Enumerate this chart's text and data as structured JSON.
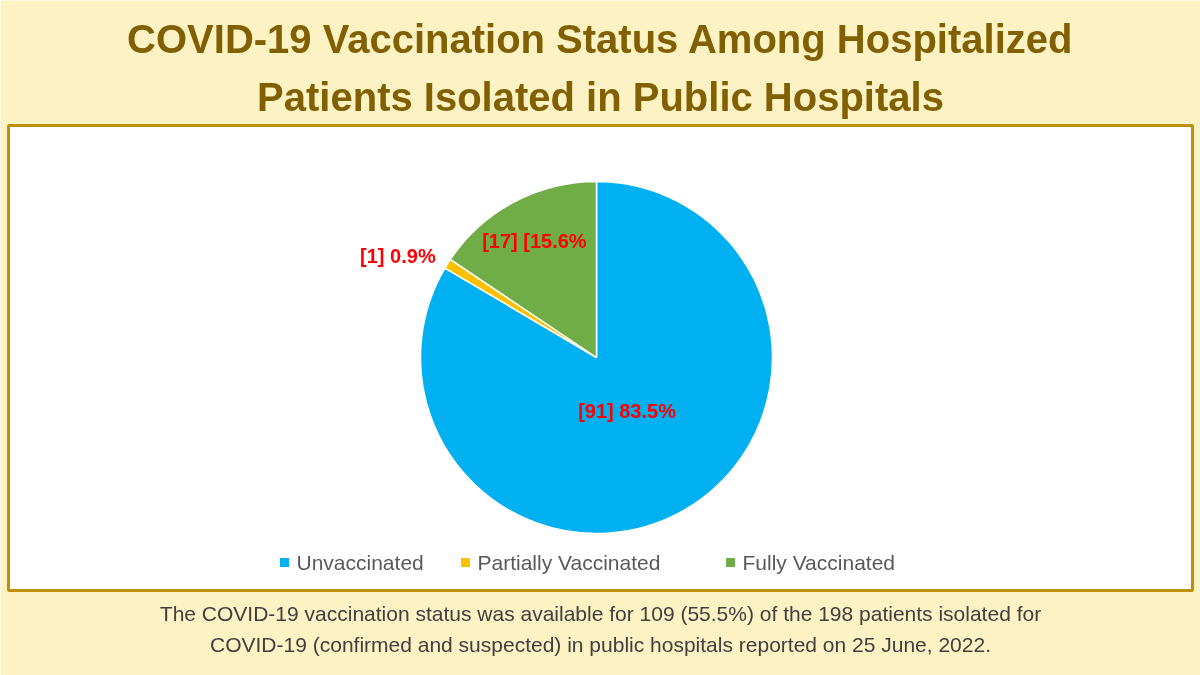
{
  "chart_data": {
    "type": "pie",
    "title": "COVID-19 Vaccination Status Among Hospitalized Patients Isolated in Public Hospitals",
    "categories": [
      "Unvaccinated",
      "Partially Vaccinated",
      "Fully Vaccinated"
    ],
    "values": [
      91,
      1,
      17
    ],
    "colors": [
      "#00b0f0",
      "#ffc000",
      "#70ad47"
    ],
    "value_labels": [
      "[91] 83.5%",
      "[1] 0.9%",
      "[17] [15.6%"
    ],
    "legend": "bottom",
    "annotations": [
      "The COVID-19 vaccination status was available for 109 (55.5%) of the 198 patients isolated for COVID-19 (confirmed and suspected) in public hospitals reported on 25 June, 2022."
    ]
  }
}
